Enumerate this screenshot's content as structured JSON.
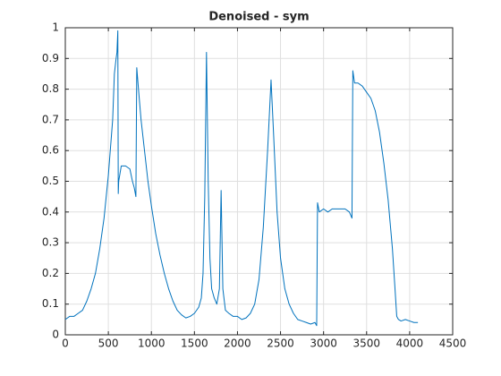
{
  "chart_data": {
    "type": "line",
    "title": "Denoised - sym",
    "x": [
      0,
      50,
      100,
      150,
      200,
      250,
      300,
      350,
      400,
      450,
      500,
      550,
      570,
      590,
      600,
      610,
      615,
      620,
      650,
      700,
      750,
      780,
      800,
      820,
      830,
      850,
      880,
      920,
      960,
      1000,
      1050,
      1100,
      1150,
      1200,
      1250,
      1300,
      1350,
      1400,
      1450,
      1500,
      1550,
      1580,
      1600,
      1620,
      1640,
      1660,
      1680,
      1700,
      1730,
      1760,
      1790,
      1810,
      1830,
      1860,
      1900,
      1950,
      2000,
      2050,
      2100,
      2150,
      2200,
      2250,
      2300,
      2350,
      2390,
      2420,
      2460,
      2500,
      2550,
      2600,
      2650,
      2700,
      2750,
      2800,
      2850,
      2900,
      2920,
      2930,
      2950,
      3000,
      3050,
      3100,
      3150,
      3200,
      3250,
      3300,
      3330,
      3340,
      3360,
      3400,
      3450,
      3500,
      3550,
      3600,
      3650,
      3700,
      3750,
      3800,
      3830,
      3850,
      3870,
      3900,
      3950,
      4000,
      4050,
      4096
    ],
    "series": [
      {
        "color": "#0072bd",
        "values": [
          0.05,
          0.06,
          0.06,
          0.07,
          0.08,
          0.11,
          0.15,
          0.2,
          0.28,
          0.38,
          0.52,
          0.7,
          0.85,
          0.9,
          0.92,
          0.99,
          0.46,
          0.5,
          0.55,
          0.55,
          0.54,
          0.5,
          0.48,
          0.45,
          0.87,
          0.8,
          0.7,
          0.6,
          0.5,
          0.42,
          0.33,
          0.26,
          0.2,
          0.15,
          0.11,
          0.08,
          0.065,
          0.055,
          0.06,
          0.07,
          0.09,
          0.12,
          0.2,
          0.45,
          0.92,
          0.5,
          0.25,
          0.15,
          0.12,
          0.1,
          0.15,
          0.47,
          0.15,
          0.08,
          0.07,
          0.06,
          0.06,
          0.05,
          0.055,
          0.07,
          0.1,
          0.18,
          0.35,
          0.6,
          0.83,
          0.65,
          0.4,
          0.25,
          0.15,
          0.1,
          0.07,
          0.05,
          0.045,
          0.04,
          0.035,
          0.04,
          0.03,
          0.43,
          0.4,
          0.41,
          0.4,
          0.41,
          0.41,
          0.41,
          0.41,
          0.4,
          0.38,
          0.86,
          0.82,
          0.82,
          0.81,
          0.79,
          0.77,
          0.73,
          0.66,
          0.56,
          0.44,
          0.28,
          0.15,
          0.06,
          0.05,
          0.045,
          0.05,
          0.045,
          0.04,
          0.04
        ]
      }
    ],
    "xlim": [
      0,
      4500
    ],
    "xticks": [
      0,
      500,
      1000,
      1500,
      2000,
      2500,
      3000,
      3500,
      4000,
      4500
    ],
    "ylim": [
      0,
      1
    ],
    "yticks": [
      0,
      0.1,
      0.2,
      0.3,
      0.4,
      0.5,
      0.6,
      0.7,
      0.8,
      0.9,
      1
    ],
    "grid": true
  }
}
